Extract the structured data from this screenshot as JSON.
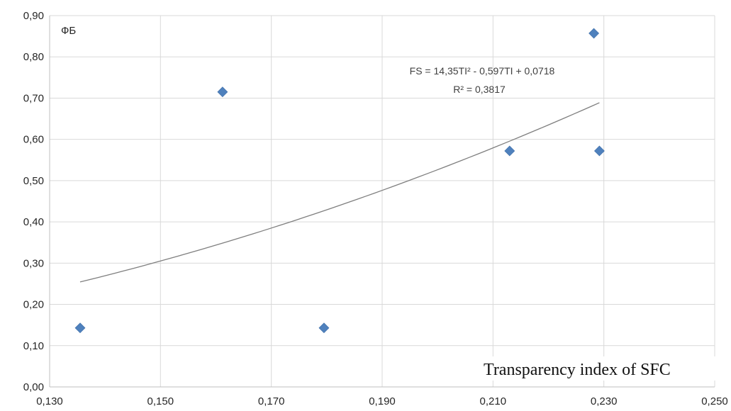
{
  "chart_data": {
    "type": "scatter",
    "title": "",
    "ylabel": "ФБ",
    "xlabel": "Transparency index of SFC",
    "xlim": [
      0.13,
      0.25
    ],
    "ylim": [
      0.0,
      0.9
    ],
    "x_ticks": [
      0.13,
      0.15,
      0.17,
      0.19,
      0.21,
      0.23,
      0.25
    ],
    "y_ticks": [
      0.0,
      0.1,
      0.2,
      0.3,
      0.4,
      0.5,
      0.6,
      0.7,
      0.8,
      0.9
    ],
    "x_tick_labels": [
      "0,130",
      "0,150",
      "0,170",
      "0,190",
      "0,210",
      "0,230",
      "0,250"
    ],
    "y_tick_labels": [
      "0,00",
      "0,10",
      "0,20",
      "0,30",
      "0,40",
      "0,50",
      "0,60",
      "0,70",
      "0,80",
      "0,90"
    ],
    "grid": true,
    "series": [
      {
        "marker": "diamond",
        "color": "#4f81bd",
        "points": [
          {
            "x": 0.1355,
            "y": 0.143
          },
          {
            "x": 0.1612,
            "y": 0.715
          },
          {
            "x": 0.1795,
            "y": 0.143
          },
          {
            "x": 0.213,
            "y": 0.572
          },
          {
            "x": 0.2282,
            "y": 0.857
          },
          {
            "x": 0.2292,
            "y": 0.572
          }
        ]
      }
    ],
    "trendline": {
      "type": "polynomial",
      "color": "#7f7f7f",
      "x_range": [
        0.1355,
        0.2292
      ],
      "equation": "FS = 14,35TI² - 0,597TI + 0,0718",
      "r_squared": "R² = 0,3817"
    }
  }
}
